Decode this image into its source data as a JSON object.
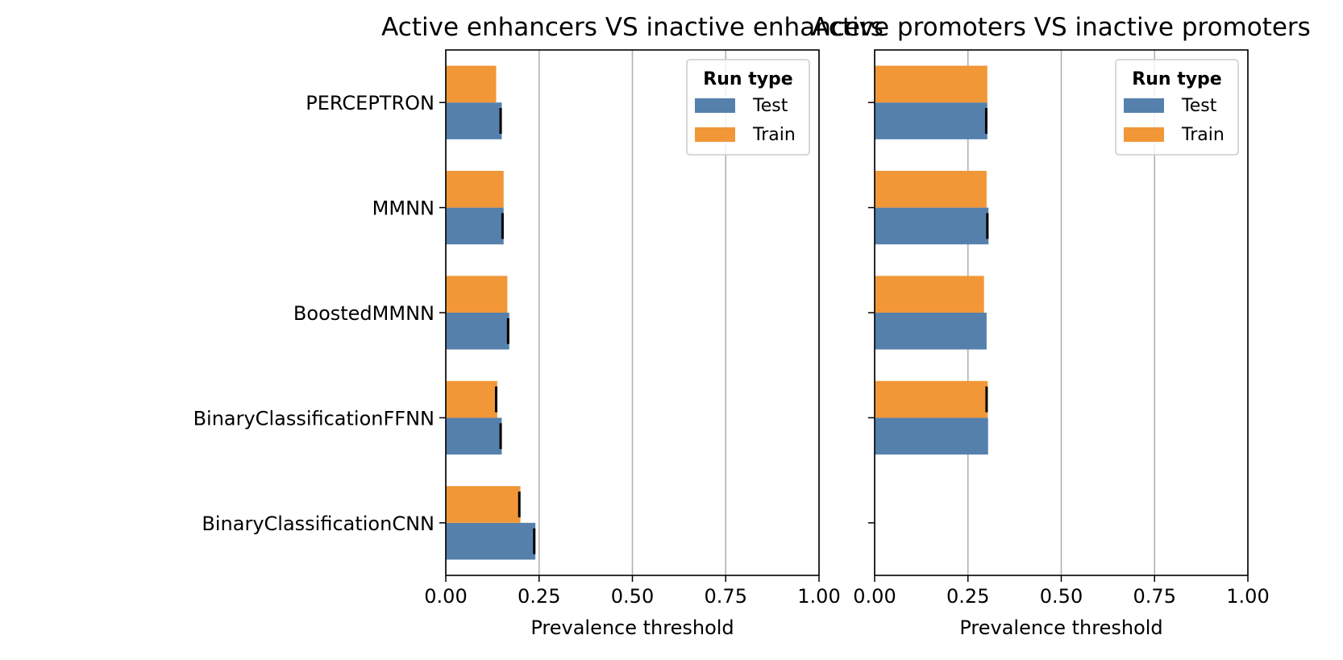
{
  "colors": {
    "Test": "#5580ac",
    "Train": "#f19737",
    "grid": "#b0b0b0",
    "error": "#000000"
  },
  "chart_data": [
    {
      "type": "bar",
      "orientation": "horizontal",
      "title": "Active enhancers VS inactive enhancers",
      "xlabel": "Prevalence threshold",
      "ylabel": "",
      "xlim": [
        0,
        1
      ],
      "xticks": [
        "0.00",
        "0.25",
        "0.50",
        "0.75",
        "1.00"
      ],
      "grid": "x",
      "legend": {
        "title": "Run type",
        "position": "top-right",
        "entries": [
          "Test",
          "Train"
        ]
      },
      "categories": [
        "PERCEPTRON",
        "MMNN",
        "BoostedMMNN",
        "BinaryClassificationFFNN",
        "BinaryClassificationCNN"
      ],
      "series": [
        {
          "name": "Test",
          "values": [
            0.15,
            0.155,
            0.17,
            0.15,
            0.24
          ],
          "error": [
            0.003,
            0.003,
            0.003,
            0.003,
            0.003
          ]
        },
        {
          "name": "Train",
          "values": [
            0.135,
            0.155,
            0.165,
            0.138,
            0.2
          ],
          "error": [
            0,
            0,
            0,
            0.003,
            0.003
          ]
        }
      ]
    },
    {
      "type": "bar",
      "orientation": "horizontal",
      "title": "Active promoters VS inactive promoters",
      "xlabel": "Prevalence threshold",
      "ylabel": "",
      "xlim": [
        0,
        1
      ],
      "xticks": [
        "0.00",
        "0.25",
        "0.50",
        "0.75",
        "1.00"
      ],
      "grid": "x",
      "legend": {
        "title": "Run type",
        "position": "top-right",
        "entries": [
          "Test",
          "Train"
        ]
      },
      "categories": [
        "PERCEPTRON",
        "MMNN",
        "BoostedMMNN",
        "BinaryClassificationFFNN",
        "BinaryClassificationCNN"
      ],
      "series": [
        {
          "name": "Test",
          "values": [
            0.302,
            0.305,
            0.3,
            0.304,
            null
          ],
          "error": [
            0.003,
            0.003,
            0,
            0,
            0
          ]
        },
        {
          "name": "Train",
          "values": [
            0.302,
            0.3,
            0.293,
            0.303,
            null
          ],
          "error": [
            0,
            0,
            0,
            0.003,
            0
          ]
        }
      ]
    }
  ]
}
